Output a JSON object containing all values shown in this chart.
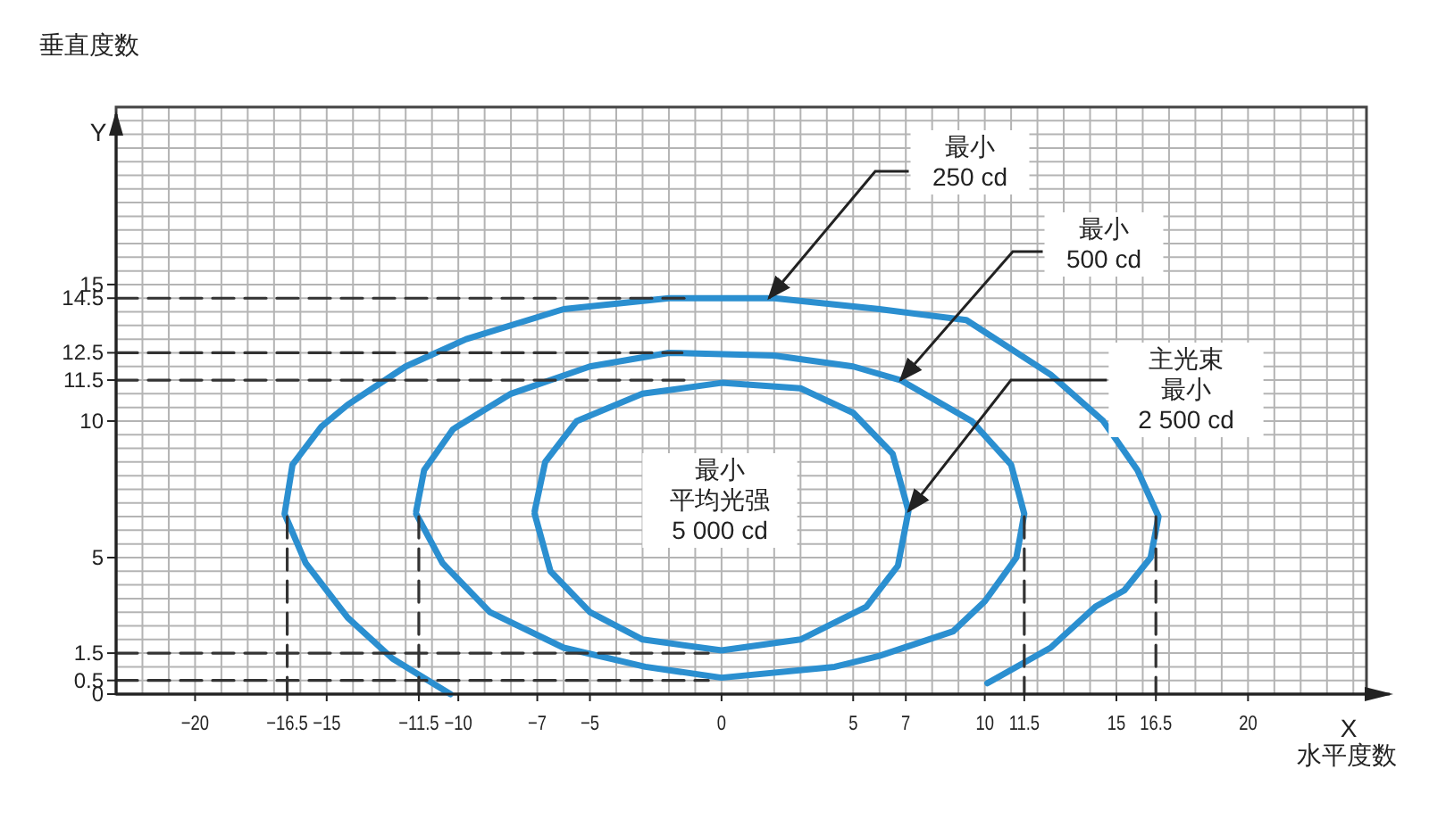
{
  "chart_data": {
    "type": "line",
    "xlabel": "水平度数",
    "ylabel": "垂直度数",
    "xlim": [
      -23,
      24.5
    ],
    "ylim": [
      0,
      21.5
    ],
    "xticks": [
      {
        "value": -20,
        "label": "−20"
      },
      {
        "value": -16.5,
        "label": "−16.5"
      },
      {
        "value": -15,
        "label": "−15"
      },
      {
        "value": -11.5,
        "label": "−11.5"
      },
      {
        "value": -10,
        "label": "−10"
      },
      {
        "value": -7,
        "label": "−7"
      },
      {
        "value": -5,
        "label": "−5"
      },
      0,
      5,
      7,
      10,
      11.5,
      15,
      16.5,
      20
    ],
    "yticks": [
      0,
      0.5,
      1.5,
      5,
      10,
      11.5,
      12.5,
      14.5,
      15
    ],
    "grid": true,
    "marker": "none",
    "series": [
      {
        "color": "#2b8fd0",
        "line_style": "solid",
        "x": [
          -10.3,
          -12.5,
          -14.2,
          -15.8,
          -16.6,
          -16.3,
          -15.2,
          -14.2,
          -12,
          -9.7,
          -6,
          -2,
          2,
          6,
          9.3,
          12.5,
          14.5,
          15.8,
          16.6,
          16.3,
          15.3,
          14.2,
          12.5,
          10.1
        ],
        "values": [
          0,
          1.3,
          2.8,
          4.8,
          6.6,
          8.4,
          9.8,
          10.6,
          12,
          13,
          14.1,
          14.5,
          14.5,
          14.1,
          13.7,
          11.7,
          10,
          8.2,
          6.5,
          5,
          3.8,
          3.2,
          1.7,
          0.4
        ]
      },
      {
        "color": "#2b8fd0",
        "line_style": "solid",
        "x": [
          -11.6,
          -10.6,
          -8.8,
          -6,
          -2.9,
          0,
          4.3,
          6,
          8.8,
          10,
          11.2,
          11.5,
          11,
          9.5,
          6.8,
          5,
          2,
          -2,
          -5,
          -8,
          -10.2,
          -11.3,
          -11.6
        ],
        "values": [
          6.6,
          4.8,
          3,
          1.7,
          1,
          0.6,
          1,
          1.4,
          2.3,
          3.4,
          5,
          6.6,
          8.4,
          10,
          11.5,
          12,
          12.4,
          12.5,
          12,
          11,
          9.7,
          8.2,
          6.7
        ]
      },
      {
        "color": "#2b8fd0",
        "line_style": "solid",
        "x": [
          -7.1,
          -6.5,
          -5,
          -3,
          0,
          3,
          5.5,
          6.7,
          7.1,
          6.5,
          5,
          3,
          0,
          -3,
          -5.5,
          -6.7,
          -7.1
        ],
        "values": [
          6.6,
          4.5,
          3,
          2,
          1.6,
          2,
          3.2,
          4.7,
          6.7,
          8.8,
          10.3,
          11.2,
          11.4,
          11,
          10,
          8.5,
          6.7
        ]
      },
      {
        "color": "#333333",
        "line_style": "dashed",
        "x": [
          -23,
          -1.3
        ],
        "values": [
          14.5,
          14.5
        ]
      },
      {
        "color": "#333333",
        "line_style": "dashed",
        "x": [
          -23,
          -1.5
        ],
        "values": [
          12.5,
          12.5
        ]
      },
      {
        "color": "#333333",
        "line_style": "dashed",
        "x": [
          -23,
          -1.3
        ],
        "values": [
          11.5,
          11.5
        ]
      },
      {
        "color": "#333333",
        "line_style": "dashed",
        "x": [
          -23,
          -0.5
        ],
        "values": [
          1.5,
          1.5
        ]
      },
      {
        "color": "#333333",
        "line_style": "dashed",
        "x": [
          -23,
          -0.5
        ],
        "values": [
          0.5,
          0.5
        ]
      },
      {
        "color": "#333333",
        "line_style": "dashed",
        "x": [
          -16.5,
          -16.5
        ],
        "values": [
          6.5,
          0
        ]
      },
      {
        "color": "#333333",
        "line_style": "dashed",
        "x": [
          -11.5,
          -11.5
        ],
        "values": [
          6.5,
          0
        ]
      },
      {
        "color": "#333333",
        "line_style": "dashed",
        "x": [
          11.5,
          11.5
        ],
        "values": [
          6.5,
          0
        ]
      },
      {
        "color": "#333333",
        "line_style": "dashed",
        "x": [
          16.5,
          16.5
        ],
        "values": [
          6.5,
          0
        ]
      }
    ],
    "annotations": [
      {
        "text": "最小\n250 cd",
        "x": 1.8,
        "y": 14.5
      },
      {
        "text": "最小\n500 cd",
        "x": 6.8,
        "y": 11.5
      },
      {
        "text": "主光束最小\n2 500 cd",
        "x": 7.1,
        "y": 6.7
      },
      "最小平均光强\n5 000 cd",
      "Y",
      "X"
    ]
  }
}
